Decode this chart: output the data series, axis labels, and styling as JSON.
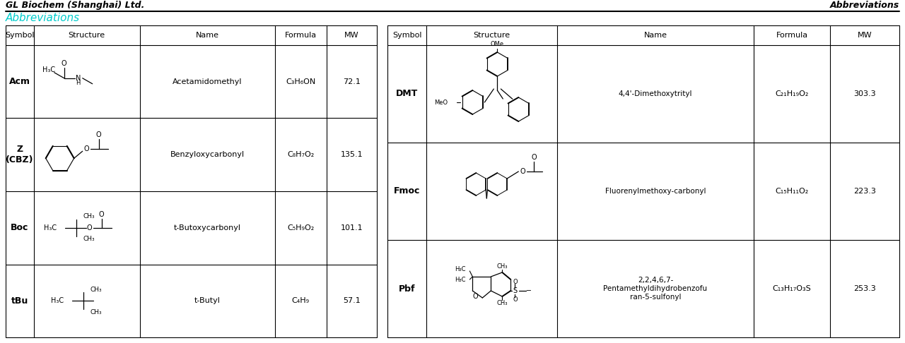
{
  "header_left": "GL Biochem (Shanghai) Ltd.",
  "header_right": "Abbreviations",
  "title": "Abbreviations",
  "title_color": "#00CCCC",
  "bg_color": "#ffffff",
  "left_rows": [
    {
      "symbol": "Acm",
      "name": "Acetamidomethyl",
      "formula": "C₃H₆ON",
      "mw": "72.1"
    },
    {
      "symbol": "Z\n(CBZ)",
      "name": "Benzyloxycarbonyl",
      "formula": "C₈H₇O₂",
      "mw": "135.1"
    },
    {
      "symbol": "Boc",
      "name": "t-Butoxycarbonyl",
      "formula": "C₅H₉O₂",
      "mw": "101.1"
    },
    {
      "symbol": "tBu",
      "name": "t-Butyl",
      "formula": "C₄H₉",
      "mw": "57.1"
    }
  ],
  "right_rows": [
    {
      "symbol": "DMT",
      "name": "4,4'-Dimethoxytrityl",
      "formula": "C₂₁H₁₉O₂",
      "mw": "303.3"
    },
    {
      "symbol": "Fmoc",
      "name": "Fluorenylmethoxy-carbonyl",
      "formula": "C₁₅H₁₁O₂",
      "mw": "223.3"
    },
    {
      "symbol": "Pbf",
      "name": "2,2,4,6,7-\nPentamethyldihydrobenzofu\nran-5-sulfonyl",
      "formula": "C₁₃H₁₇O₃S",
      "mw": "253.3"
    }
  ]
}
